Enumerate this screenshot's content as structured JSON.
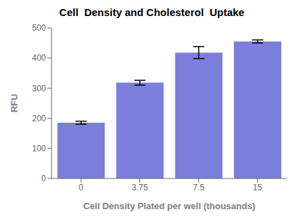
{
  "chart_data": {
    "type": "bar",
    "title": "Cell  Density and Cholesterol  Uptake",
    "xlabel": "Cell Density Plated per well (thousands)",
    "ylabel": "RFU",
    "categories": [
      "0",
      "3.75",
      "7.5",
      "15"
    ],
    "values": [
      185,
      318,
      418,
      455
    ],
    "errors": [
      5,
      8,
      20,
      5
    ],
    "color": "#7b7fdb",
    "ylim": [
      0,
      500
    ],
    "yticks": [
      0,
      100,
      200,
      300,
      400,
      500
    ],
    "grid": false
  }
}
